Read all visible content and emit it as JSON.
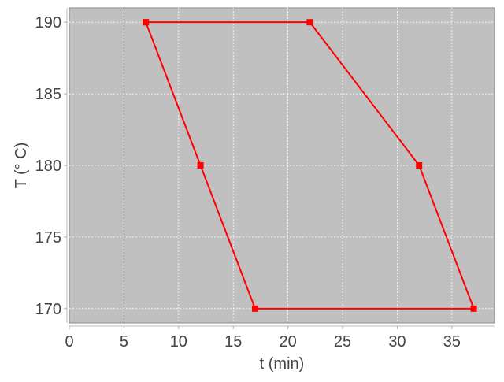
{
  "chart_data": {
    "type": "line",
    "title": "",
    "xlabel": "t (min)",
    "ylabel": "T (° C)",
    "xlim": [
      0,
      38.9
    ],
    "ylim": [
      169,
      191
    ],
    "xticks": [
      0,
      5,
      10,
      15,
      20,
      25,
      30,
      35
    ],
    "yticks": [
      170,
      175,
      180,
      185,
      190
    ],
    "grid": true,
    "series": [
      {
        "x": [
          7,
          22,
          32,
          37,
          17,
          12,
          7
        ],
        "y": [
          190,
          190,
          180,
          170,
          170,
          180,
          190
        ],
        "color": "#ff0000",
        "marker": "square"
      }
    ],
    "colors": {
      "plot_background": "#c0c0c0",
      "grid": "#ffffff"
    }
  }
}
